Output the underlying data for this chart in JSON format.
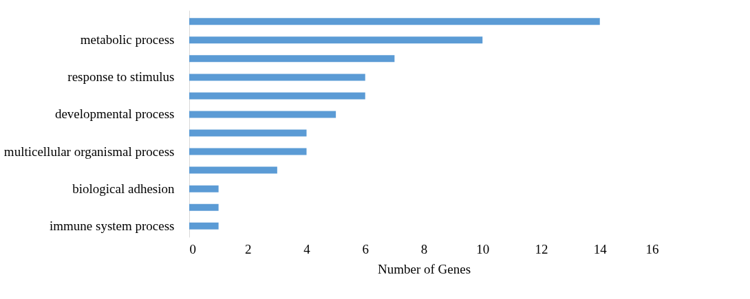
{
  "chart_data": {
    "type": "bar",
    "orientation": "horizontal",
    "xlabel": "Number of Genes",
    "categories": [
      null,
      "metabolic process",
      null,
      "response to stimulus",
      null,
      "developmental process",
      null,
      "multicellular organismal process",
      null,
      "biological adhesion",
      null,
      "immune system process"
    ],
    "values": [
      14,
      10,
      7,
      6,
      6,
      5,
      4,
      4,
      3,
      1,
      1,
      1
    ],
    "color": "#5b9bd5",
    "xlim": [
      0,
      16
    ],
    "xticks": [
      0,
      2,
      4,
      6,
      8,
      10,
      12,
      14,
      16
    ],
    "grid": false
  }
}
